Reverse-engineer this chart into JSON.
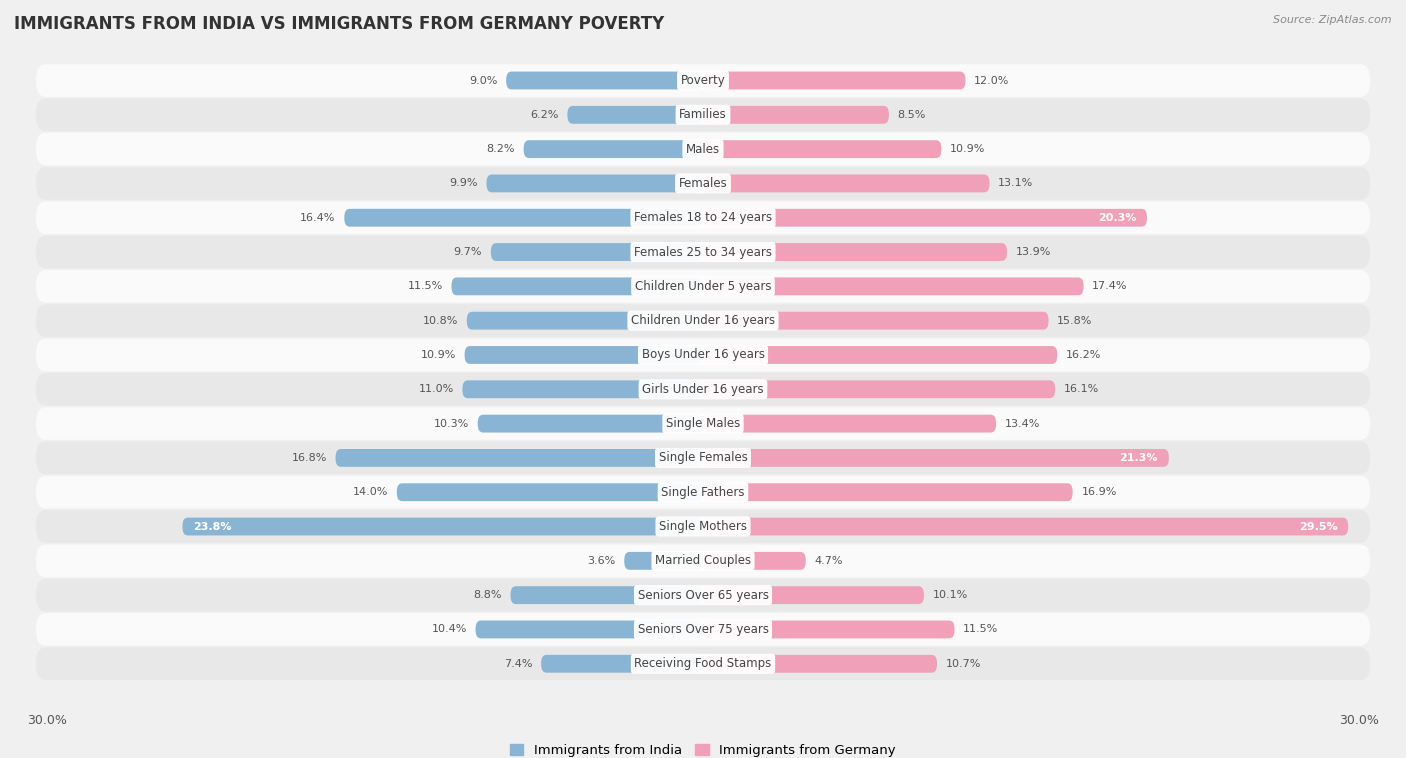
{
  "title": "IMMIGRANTS FROM INDIA VS IMMIGRANTS FROM GERMANY POVERTY",
  "source": "Source: ZipAtlas.com",
  "categories": [
    "Poverty",
    "Families",
    "Males",
    "Females",
    "Females 18 to 24 years",
    "Females 25 to 34 years",
    "Children Under 5 years",
    "Children Under 16 years",
    "Boys Under 16 years",
    "Girls Under 16 years",
    "Single Males",
    "Single Females",
    "Single Fathers",
    "Single Mothers",
    "Married Couples",
    "Seniors Over 65 years",
    "Seniors Over 75 years",
    "Receiving Food Stamps"
  ],
  "india_values": [
    9.0,
    6.2,
    8.2,
    9.9,
    16.4,
    9.7,
    11.5,
    10.8,
    10.9,
    11.0,
    10.3,
    16.8,
    14.0,
    23.8,
    3.6,
    8.8,
    10.4,
    7.4
  ],
  "germany_values": [
    12.0,
    8.5,
    10.9,
    13.1,
    20.3,
    13.9,
    17.4,
    15.8,
    16.2,
    16.1,
    13.4,
    21.3,
    16.9,
    29.5,
    4.7,
    10.1,
    11.5,
    10.7
  ],
  "india_color": "#8ab4d4",
  "germany_color": "#f0a0b8",
  "india_label": "Immigrants from India",
  "germany_label": "Immigrants from Germany",
  "x_max": 30.0,
  "background_color": "#f0f0f0",
  "row_color_light": "#fafafa",
  "row_color_dark": "#e8e8e8",
  "title_fontsize": 12,
  "label_fontsize": 8.5,
  "value_fontsize": 8,
  "source_fontsize": 8
}
